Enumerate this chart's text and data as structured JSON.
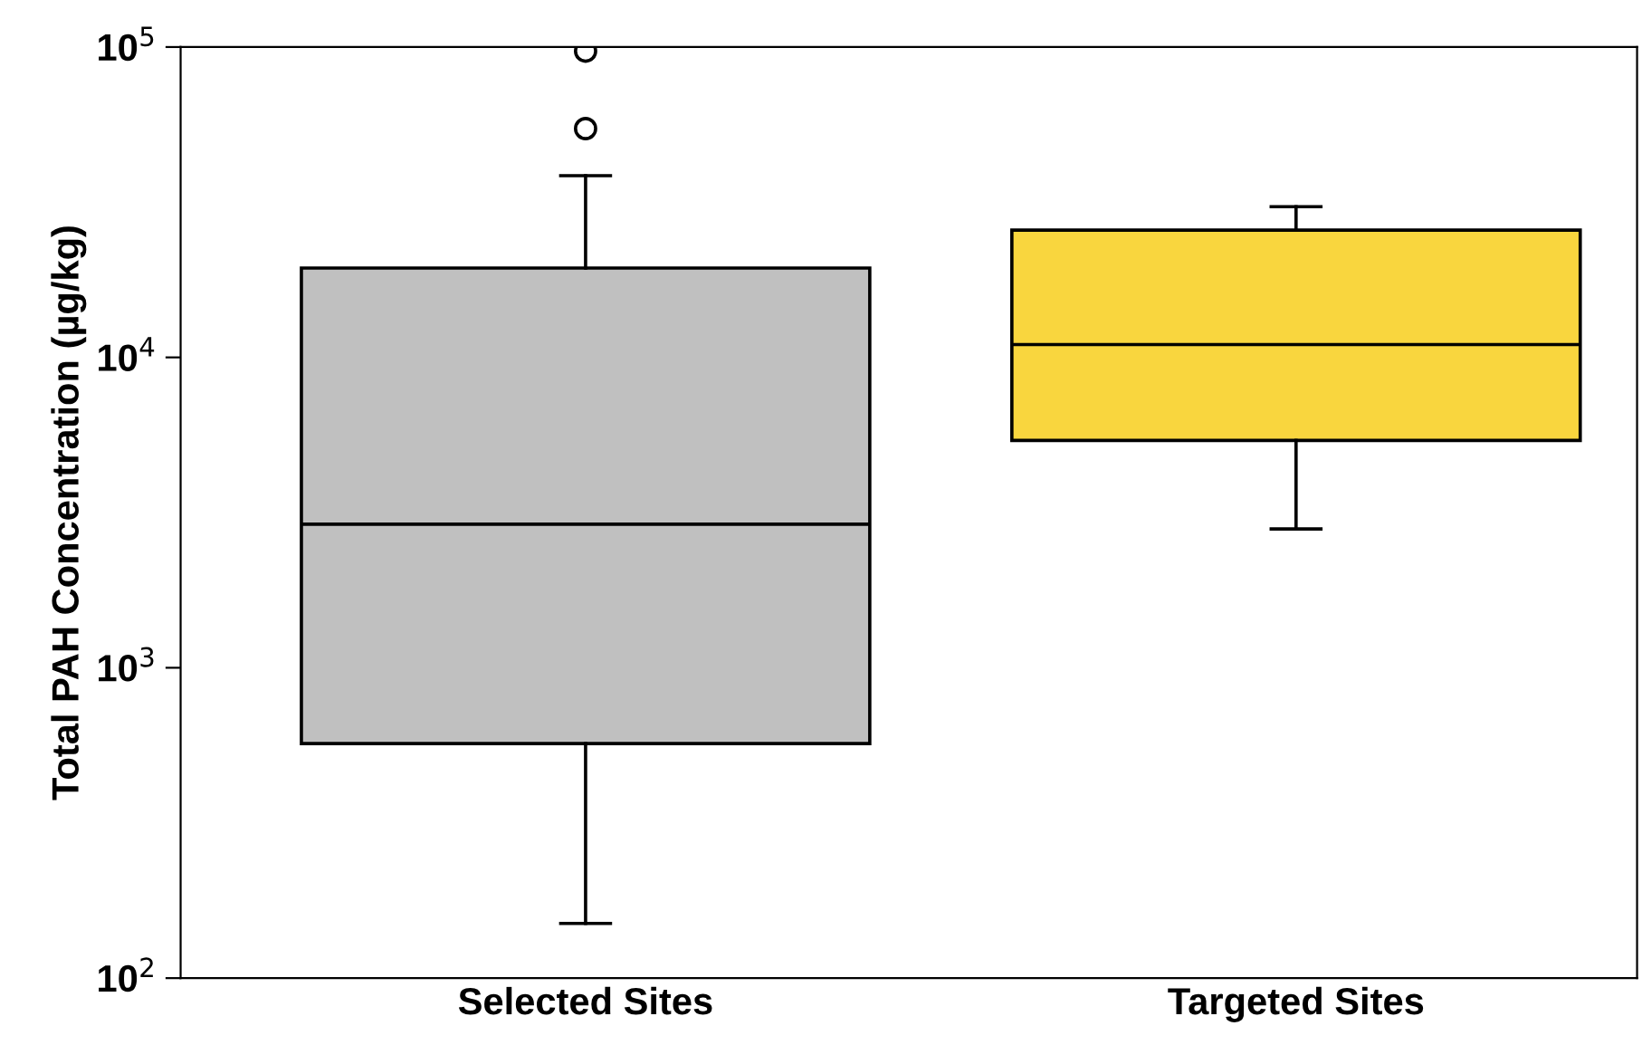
{
  "chart_data": {
    "type": "box",
    "ylabel": "Total PAH Concentration (µg/kg)",
    "categories": [
      "Selected Sites",
      "Targeted Sites"
    ],
    "log": true,
    "ylim": [
      100,
      100000
    ],
    "yticks": [
      {
        "value": 100,
        "label": "10$^{2}$"
      },
      {
        "value": 1000,
        "label": "10$^{3}$"
      },
      {
        "value": 10000,
        "label": "10$^{4}$"
      },
      {
        "value": 100000,
        "label": "10$^{5}$"
      }
    ],
    "grid": false,
    "colors": [
      "#c0c0c0",
      "#f9d63e"
    ],
    "boxes": [
      {
        "low": 150,
        "q1": 570,
        "median": 2900,
        "q3": 19400,
        "high": 38500,
        "outliers": [
          54600,
          97000
        ]
      },
      {
        "low": 2800,
        "q1": 5400,
        "median": 11000,
        "q3": 25700,
        "high": 30600
      }
    ]
  }
}
